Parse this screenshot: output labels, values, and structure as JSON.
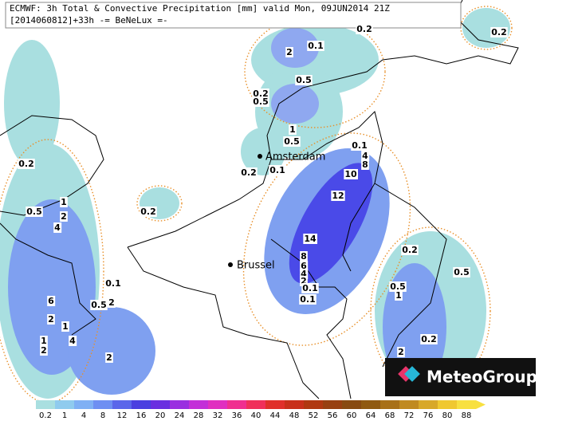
{
  "header": {
    "line1": "ECMWF: 3h Total & Convective Precipitation [mm] valid Mon, 09JUN2014 21Z",
    "line2": "[2014060812]+33h -= BeNeLux =-"
  },
  "cities": [
    "Amsterdam",
    "Brussel"
  ],
  "contour_labels": [
    "0.2",
    "0.2",
    "2",
    "0.1",
    "0.5",
    "0.2",
    "0.5",
    "1",
    "0.5",
    "0.2",
    "0.1",
    "0.2",
    "0.1",
    "4",
    "8",
    "10",
    "12",
    "0.2",
    "1",
    "0.5",
    "2",
    "4",
    "14",
    "0.2",
    "8",
    "6",
    "4",
    "2",
    "0.1",
    "0.1",
    "0.5",
    "0.1",
    "0.5",
    "1",
    "6",
    "0.5",
    "2",
    "2",
    "1",
    "4",
    "1",
    "2",
    "0.2",
    "2",
    "2"
  ],
  "colorbar": {
    "labels": [
      "0.2",
      "1",
      "4",
      "8",
      "12",
      "16",
      "20",
      "24",
      "28",
      "32",
      "36",
      "40",
      "44",
      "48",
      "52",
      "56",
      "60",
      "64",
      "68",
      "72",
      "76",
      "80",
      "88"
    ],
    "colors": [
      "#a9dfe0",
      "#8fcbee",
      "#7fb0f4",
      "#6e8ff2",
      "#5a66ea",
      "#4a3fe0",
      "#6a2fe0",
      "#9a2fe0",
      "#c32fd8",
      "#e02fc0",
      "#f02f90",
      "#f0305a",
      "#e0302a",
      "#c8301a",
      "#b03810",
      "#984010",
      "#884a10",
      "#905a10",
      "#a87018",
      "#c08a20",
      "#d8a828",
      "#f0c830",
      "#f8e040"
    ]
  },
  "logo": "MeteoGroup"
}
